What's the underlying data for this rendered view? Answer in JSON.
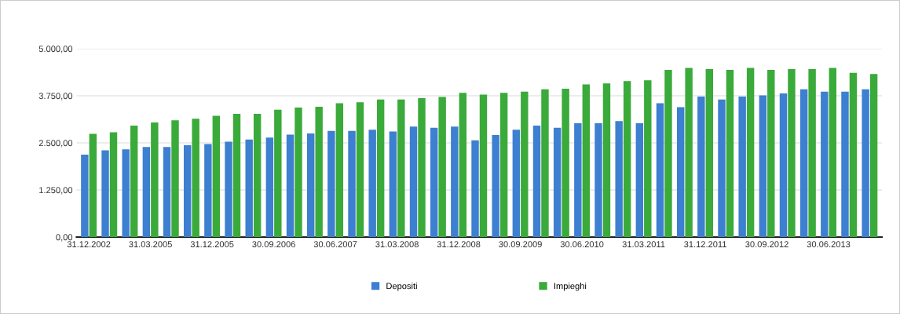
{
  "chart_data": {
    "type": "bar",
    "categories": [
      "31.12.2002",
      null,
      null,
      "31.03.2005",
      null,
      null,
      "31.12.2005",
      null,
      null,
      "30.09.2006",
      null,
      null,
      "30.06.2007",
      null,
      null,
      "31.03.2008",
      null,
      null,
      "31.12.2008",
      null,
      null,
      "30.09.2009",
      null,
      null,
      "30.06.2010",
      null,
      null,
      "31.03.2011",
      null,
      null,
      "31.12.2011",
      null,
      null,
      "30.09.2012",
      null,
      null,
      "30.06.2013",
      null,
      null
    ],
    "series": [
      {
        "name": "Depositi",
        "color": "#3d7fd0",
        "values": [
          2190,
          2300,
          2330,
          2390,
          2390,
          2440,
          2470,
          2530,
          2590,
          2640,
          2720,
          2750,
          2820,
          2820,
          2850,
          2800,
          2930,
          2900,
          2930,
          2570,
          2710,
          2850,
          2960,
          2900,
          3020,
          3020,
          3080,
          3020,
          3550,
          3450,
          3730,
          3650,
          3730,
          3760,
          3810,
          3920,
          3860,
          3860,
          3920
        ]
      },
      {
        "name": "Impieghi",
        "color": "#3aaa3a",
        "values": [
          2740,
          2780,
          2960,
          3040,
          3100,
          3140,
          3220,
          3270,
          3270,
          3380,
          3440,
          3460,
          3550,
          3580,
          3650,
          3650,
          3690,
          3720,
          3830,
          3780,
          3830,
          3860,
          3920,
          3940,
          4050,
          4080,
          4140,
          4160,
          4440,
          4490,
          4460,
          4440,
          4490,
          4440,
          4460,
          4460,
          4490,
          4360,
          4330
        ]
      }
    ],
    "ylim": [
      0,
      5000
    ],
    "yticks": [
      {
        "value": 0,
        "label": "0,00"
      },
      {
        "value": 1250,
        "label": "1.250,00"
      },
      {
        "value": 2500,
        "label": "2.500,00"
      },
      {
        "value": 3750,
        "label": "3.750,00"
      },
      {
        "value": 5000,
        "label": "5.000,00"
      }
    ],
    "grid": "y",
    "legend": "bottom"
  }
}
